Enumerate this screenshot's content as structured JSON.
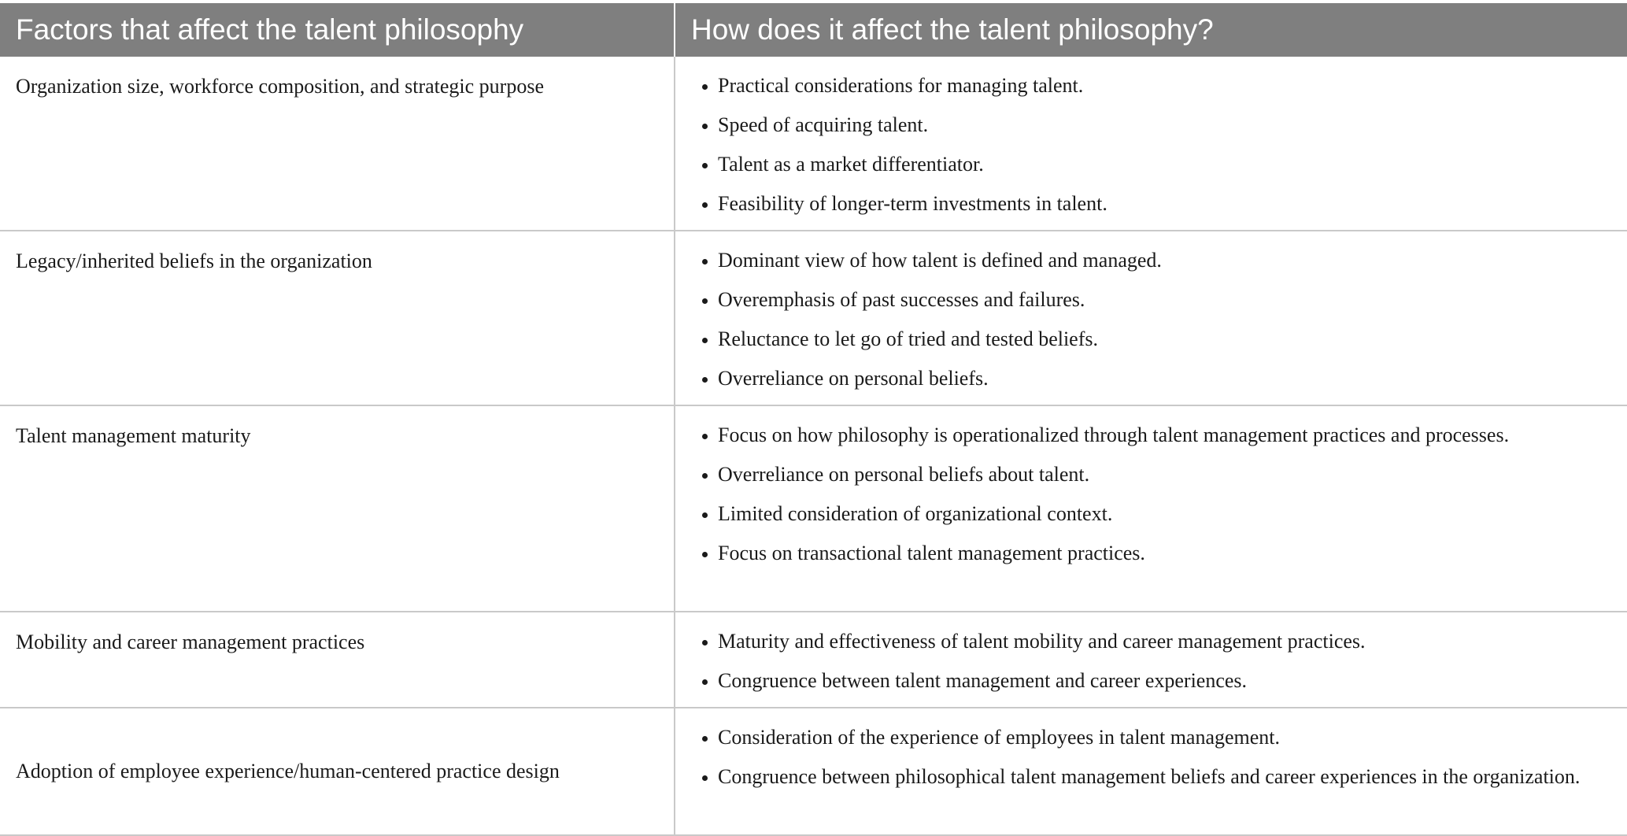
{
  "table": {
    "header": {
      "col1": "Factors that affect the talent philosophy",
      "col2": "How does it affect the talent philosophy?"
    },
    "rows": [
      {
        "factor": "Organization size, workforce composition, and strategic purpose",
        "effects": [
          "Practical considerations for managing talent.",
          "Speed of acquiring talent.",
          "Talent as a market differentiator.",
          "Feasibility of longer-term investments in talent."
        ]
      },
      {
        "factor": "Legacy/inherited beliefs in the organization",
        "effects": [
          "Dominant view of how talent is defined and managed.",
          "Overemphasis of past successes and failures.",
          "Reluctance to let go of tried and tested beliefs.",
          "Overreliance on personal beliefs."
        ]
      },
      {
        "factor": "Talent management maturity",
        "effects": [
          "Focus on how philosophy is operationalized through talent management practices and processes.",
          "Overreliance on personal beliefs about talent.",
          "Limited consideration of organizational context.",
          "Focus on transactional talent management practices."
        ]
      },
      {
        "factor": "Mobility and career management practices",
        "effects": [
          "Maturity and effectiveness of talent mobility and career management practices.",
          "Congruence between talent management and career experiences."
        ]
      },
      {
        "factor": "Adoption of employee experience/human-centered practice design",
        "effects": [
          "Consideration of the experience of employees in talent management.",
          "Congruence between philosophical talent management beliefs and career experiences in the organization."
        ]
      }
    ]
  }
}
